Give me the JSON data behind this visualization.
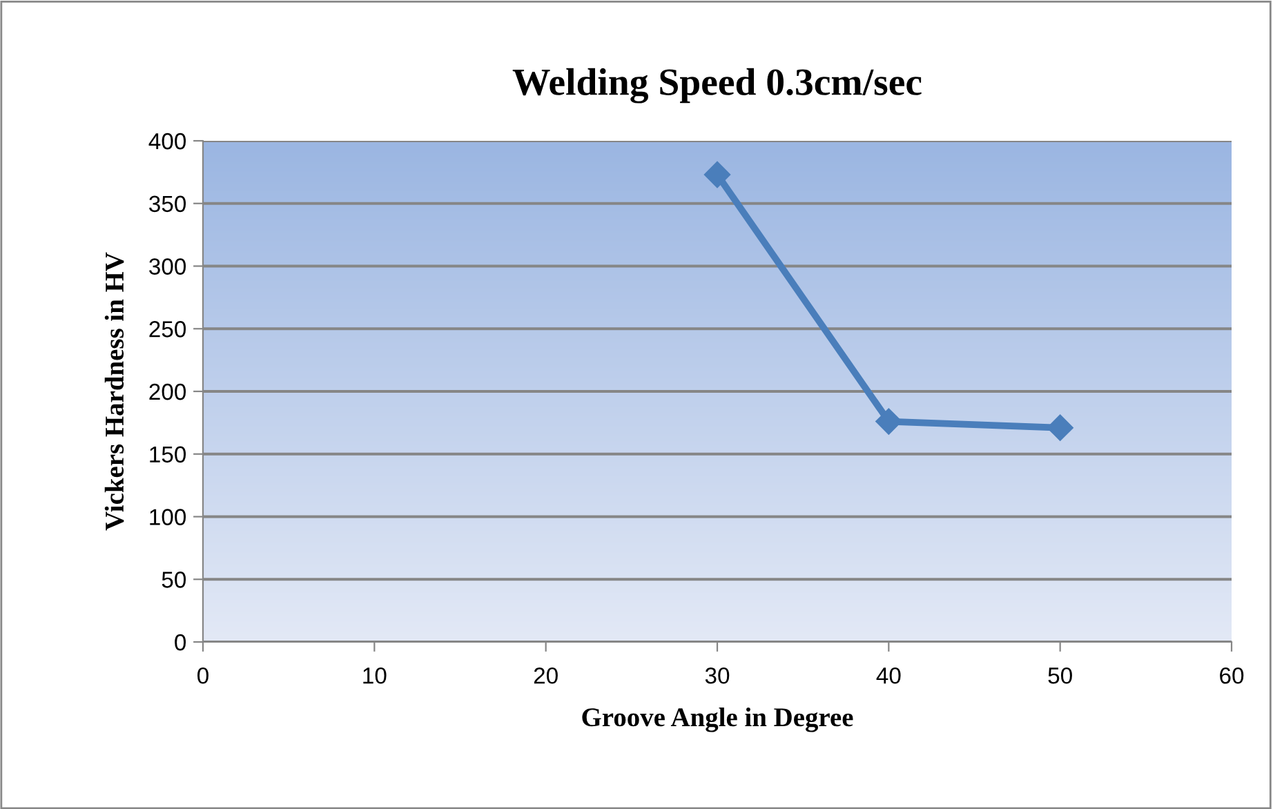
{
  "chart_data": {
    "type": "line",
    "title": "Welding Speed 0.3cm/sec",
    "xlabel": "Groove Angle in Degree",
    "ylabel": "Vickers Hardness in HV",
    "x": [
      30,
      40,
      50
    ],
    "series": [
      {
        "color": "#4a7ebb",
        "values": [
          373,
          176,
          171
        ]
      }
    ],
    "xlim": [
      0,
      60
    ],
    "xticks": [
      0,
      10,
      20,
      30,
      40,
      50,
      60
    ],
    "ylim": [
      0,
      400
    ],
    "yticks": [
      0,
      50,
      100,
      150,
      200,
      250,
      300,
      350,
      400
    ],
    "grid": "y",
    "marker": "diamond",
    "line_style": "solid"
  }
}
